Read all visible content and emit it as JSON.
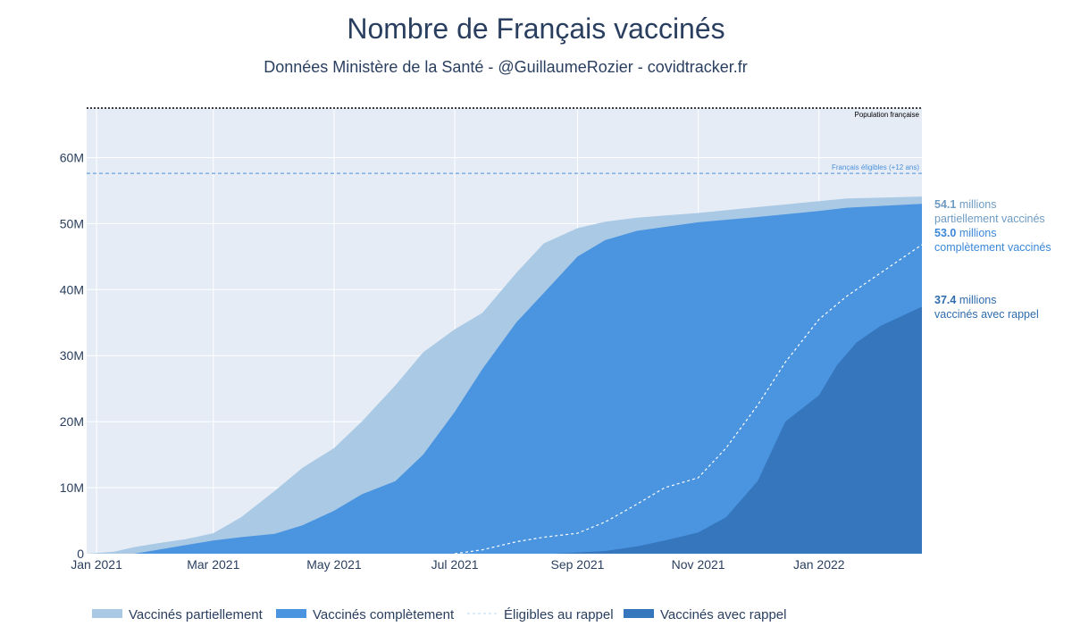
{
  "chart_data": {
    "type": "area",
    "title": "Nombre de Français vaccinés",
    "subtitle": "Données Ministère de la Santé - @GuillaumeRozier - covidtracker.fr",
    "x_range": [
      "2020-12-27",
      "2022-02-22"
    ],
    "y_range": [
      0,
      67.5
    ],
    "y_unit": "millions",
    "y_ticks": [
      {
        "value": 0,
        "label": "0"
      },
      {
        "value": 10,
        "label": "10M"
      },
      {
        "value": 20,
        "label": "20M"
      },
      {
        "value": 30,
        "label": "30M"
      },
      {
        "value": 40,
        "label": "40M"
      },
      {
        "value": 50,
        "label": "50M"
      },
      {
        "value": 60,
        "label": "60M"
      }
    ],
    "x_ticks": [
      {
        "date": "2021-01-01",
        "label": "Jan 2021"
      },
      {
        "date": "2021-03-01",
        "label": "Mar 2021"
      },
      {
        "date": "2021-05-01",
        "label": "May 2021"
      },
      {
        "date": "2021-07-01",
        "label": "Jul 2021"
      },
      {
        "date": "2021-09-01",
        "label": "Sep 2021"
      },
      {
        "date": "2021-11-01",
        "label": "Nov 2021"
      },
      {
        "date": "2022-01-01",
        "label": "Jan 2022"
      }
    ],
    "grid": true,
    "legend_position": "bottom",
    "reference_lines": [
      {
        "label": "Population française",
        "value": 67.5,
        "color": "#000000",
        "style": "dotted"
      },
      {
        "label": "Français éligibles (+12 ans)",
        "value": 57.6,
        "color": "#4a90d9",
        "style": "dashed"
      }
    ],
    "series": [
      {
        "name": "Vaccinés partiellement",
        "type": "area",
        "color": "#a9c9e4",
        "points": [
          [
            "2020-12-27",
            0
          ],
          [
            "2021-01-10",
            0.3
          ],
          [
            "2021-01-20",
            1.0
          ],
          [
            "2021-02-01",
            1.6
          ],
          [
            "2021-02-15",
            2.2
          ],
          [
            "2021-03-01",
            3.1
          ],
          [
            "2021-03-15",
            5.5
          ],
          [
            "2021-04-01",
            9.5
          ],
          [
            "2021-04-15",
            13.0
          ],
          [
            "2021-05-01",
            16.0
          ],
          [
            "2021-05-15",
            20.0
          ],
          [
            "2021-06-01",
            25.5
          ],
          [
            "2021-06-15",
            30.5
          ],
          [
            "2021-07-01",
            34.0
          ],
          [
            "2021-07-15",
            36.5
          ],
          [
            "2021-08-01",
            42.5
          ],
          [
            "2021-08-15",
            47.0
          ],
          [
            "2021-09-01",
            49.3
          ],
          [
            "2021-09-15",
            50.3
          ],
          [
            "2021-10-01",
            50.9
          ],
          [
            "2021-11-01",
            51.6
          ],
          [
            "2021-12-01",
            52.5
          ],
          [
            "2022-01-01",
            53.4
          ],
          [
            "2022-01-15",
            53.8
          ],
          [
            "2022-02-22",
            54.1
          ]
        ]
      },
      {
        "name": "Vaccinés complètement",
        "type": "area",
        "color": "#4a94e0",
        "points": [
          [
            "2020-12-27",
            0
          ],
          [
            "2021-01-20",
            0
          ],
          [
            "2021-02-01",
            0.6
          ],
          [
            "2021-02-15",
            1.3
          ],
          [
            "2021-03-01",
            2.0
          ],
          [
            "2021-03-15",
            2.5
          ],
          [
            "2021-04-01",
            3.0
          ],
          [
            "2021-04-15",
            4.3
          ],
          [
            "2021-05-01",
            6.5
          ],
          [
            "2021-05-15",
            9.0
          ],
          [
            "2021-06-01",
            11.0
          ],
          [
            "2021-06-15",
            15.0
          ],
          [
            "2021-07-01",
            21.5
          ],
          [
            "2021-07-15",
            28.0
          ],
          [
            "2021-08-01",
            35.0
          ],
          [
            "2021-08-15",
            39.5
          ],
          [
            "2021-09-01",
            45.0
          ],
          [
            "2021-09-15",
            47.5
          ],
          [
            "2021-10-01",
            48.9
          ],
          [
            "2021-11-01",
            50.2
          ],
          [
            "2021-12-01",
            51.0
          ],
          [
            "2022-01-01",
            51.9
          ],
          [
            "2022-01-15",
            52.4
          ],
          [
            "2022-02-22",
            53.0
          ]
        ]
      },
      {
        "name": "Éligibles au rappel",
        "type": "line",
        "color": "#ffffff",
        "style": "dashed",
        "points": [
          [
            "2021-07-01",
            0
          ],
          [
            "2021-07-15",
            0.6
          ],
          [
            "2021-08-01",
            1.8
          ],
          [
            "2021-08-15",
            2.5
          ],
          [
            "2021-09-01",
            3.1
          ],
          [
            "2021-09-15",
            4.8
          ],
          [
            "2021-10-01",
            7.5
          ],
          [
            "2021-10-15",
            10.0
          ],
          [
            "2021-11-01",
            11.5
          ],
          [
            "2021-11-15",
            16.0
          ],
          [
            "2021-12-01",
            22.5
          ],
          [
            "2021-12-15",
            29.0
          ],
          [
            "2022-01-01",
            35.5
          ],
          [
            "2022-01-15",
            39.0
          ],
          [
            "2022-02-01",
            42.5
          ],
          [
            "2022-02-22",
            46.8
          ]
        ]
      },
      {
        "name": "Vaccinés avec rappel",
        "type": "area",
        "color": "#3576bd",
        "points": [
          [
            "2020-12-27",
            0
          ],
          [
            "2021-08-20",
            0
          ],
          [
            "2021-09-15",
            0.4
          ],
          [
            "2021-10-01",
            1.1
          ],
          [
            "2021-10-15",
            2.0
          ],
          [
            "2021-11-01",
            3.2
          ],
          [
            "2021-11-15",
            5.5
          ],
          [
            "2021-12-01",
            11.0
          ],
          [
            "2021-12-15",
            20.0
          ],
          [
            "2022-01-01",
            24.0
          ],
          [
            "2022-01-10",
            28.5
          ],
          [
            "2022-01-20",
            32.0
          ],
          [
            "2022-02-01",
            34.5
          ],
          [
            "2022-02-22",
            37.4
          ]
        ]
      }
    ],
    "annotations": [
      {
        "value": "54.1",
        "text": "millions",
        "line2": "partiellement vaccinés",
        "color": "#6d9bc3",
        "y": 54.1
      },
      {
        "value": "53.0",
        "text": "millions",
        "line2": "complètement vaccinés",
        "color": "#3a87d9",
        "y": 53.0
      },
      {
        "value": "37.4",
        "text": "millions",
        "line2": "vaccinés avec rappel",
        "color": "#2f6cae",
        "y": 37.4
      }
    ]
  }
}
